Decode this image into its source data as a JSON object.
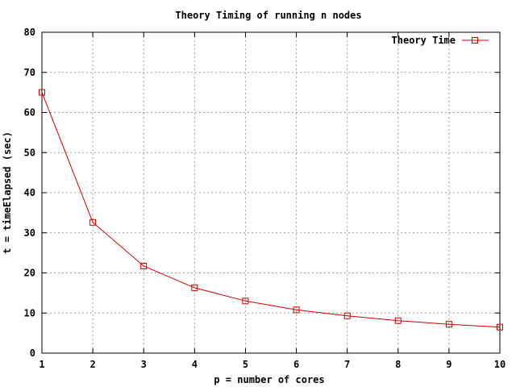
{
  "chart_data": {
    "type": "line",
    "title": "Theory Timing of running n nodes",
    "xlabel": "p = number of cores",
    "ylabel": "t = timeElapsed (sec)",
    "xlim": [
      1,
      10
    ],
    "ylim": [
      0,
      80
    ],
    "xticks": [
      1,
      2,
      3,
      4,
      5,
      6,
      7,
      8,
      9,
      10
    ],
    "yticks": [
      0,
      10,
      20,
      30,
      40,
      50,
      60,
      70,
      80
    ],
    "grid": true,
    "legend_position": "top-right",
    "series": [
      {
        "name": "Theory Time",
        "color": "#cc0000",
        "marker": "square",
        "x": [
          1,
          2,
          3,
          4,
          5,
          6,
          7,
          8,
          9,
          10
        ],
        "y": [
          65.0,
          32.6,
          21.7,
          16.3,
          13.0,
          10.8,
          9.3,
          8.1,
          7.2,
          6.5
        ]
      }
    ]
  }
}
